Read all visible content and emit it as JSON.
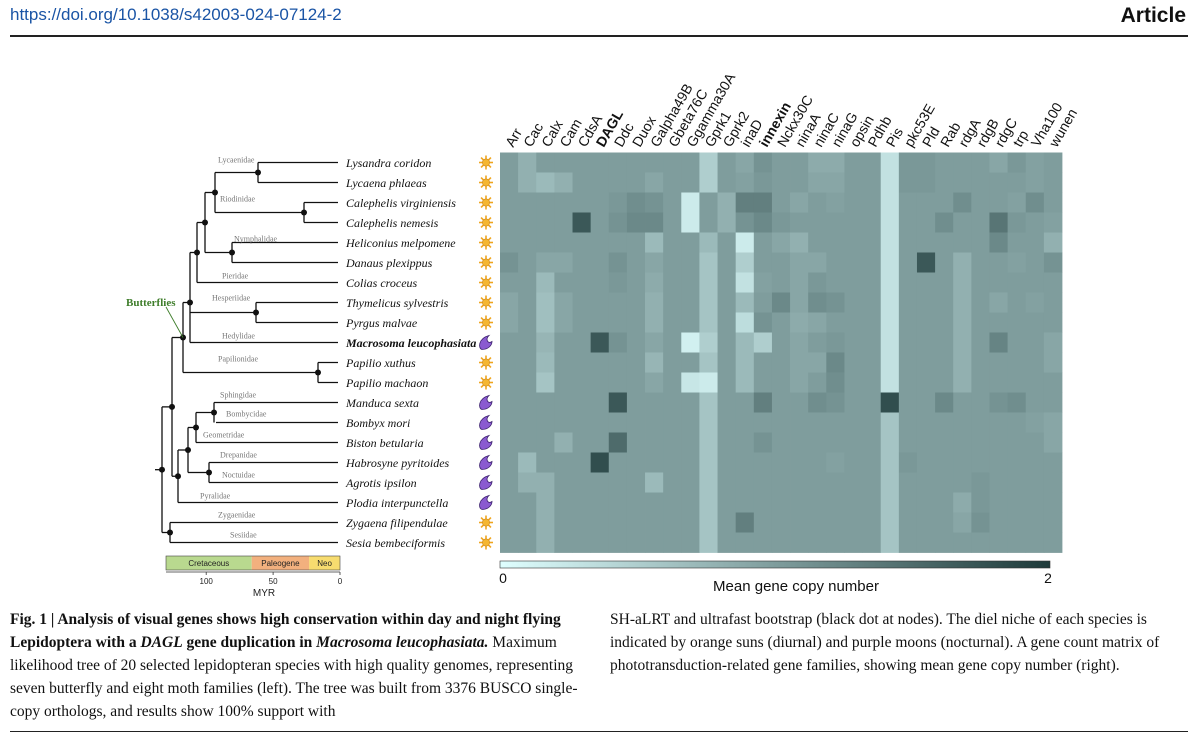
{
  "header": {
    "doi": "https://doi.org/10.1038/s42003-024-07124-2",
    "section": "Article"
  },
  "genes": [
    {
      "name": "Arr",
      "bold": false
    },
    {
      "name": "Cac",
      "bold": false
    },
    {
      "name": "Calx",
      "bold": false
    },
    {
      "name": "Cam",
      "bold": false
    },
    {
      "name": "CdsA",
      "bold": false
    },
    {
      "name": "DAGL",
      "bold": true
    },
    {
      "name": "Ddc",
      "bold": false
    },
    {
      "name": "Duox",
      "bold": false
    },
    {
      "name": "Galpha49B",
      "bold": false
    },
    {
      "name": "Gbeta76C",
      "bold": false
    },
    {
      "name": "Ggamma30A",
      "bold": false
    },
    {
      "name": "Gprk1",
      "bold": false
    },
    {
      "name": "Gprk2",
      "bold": false
    },
    {
      "name": "inaD",
      "bold": false
    },
    {
      "name": "innexin",
      "bold": true
    },
    {
      "name": "Nckx30C",
      "bold": false
    },
    {
      "name": "ninaA",
      "bold": false
    },
    {
      "name": "ninaC",
      "bold": false
    },
    {
      "name": "ninaG",
      "bold": false
    },
    {
      "name": "opsin",
      "bold": false
    },
    {
      "name": "Pdhb",
      "bold": false
    },
    {
      "name": "Pis",
      "bold": false
    },
    {
      "name": "pkc53E",
      "bold": false
    },
    {
      "name": "Pld",
      "bold": false
    },
    {
      "name": "Rab",
      "bold": false
    },
    {
      "name": "rdgA",
      "bold": false
    },
    {
      "name": "rdgB",
      "bold": false
    },
    {
      "name": "rdgC",
      "bold": false
    },
    {
      "name": "trp",
      "bold": false
    },
    {
      "name": "Vha100",
      "bold": false
    },
    {
      "name": "wunen",
      "bold": false
    }
  ],
  "species": [
    {
      "name": "Lysandra coridon",
      "niche": "diurnal",
      "bold": false
    },
    {
      "name": "Lycaena phlaeas",
      "niche": "diurnal",
      "bold": false
    },
    {
      "name": "Calephelis virginiensis",
      "niche": "diurnal",
      "bold": false
    },
    {
      "name": "Calephelis nemesis",
      "niche": "diurnal",
      "bold": false
    },
    {
      "name": "Heliconius melpomene",
      "niche": "diurnal",
      "bold": false
    },
    {
      "name": "Danaus plexippus",
      "niche": "diurnal",
      "bold": false
    },
    {
      "name": "Colias croceus",
      "niche": "diurnal",
      "bold": false
    },
    {
      "name": "Thymelicus sylvestris",
      "niche": "diurnal",
      "bold": false
    },
    {
      "name": "Pyrgus malvae",
      "niche": "diurnal",
      "bold": false
    },
    {
      "name": "Macrosoma leucophasiata",
      "niche": "nocturnal",
      "bold": true
    },
    {
      "name": "Papilio xuthus",
      "niche": "diurnal",
      "bold": false
    },
    {
      "name": "Papilio machaon",
      "niche": "diurnal",
      "bold": false
    },
    {
      "name": "Manduca sexta",
      "niche": "nocturnal",
      "bold": false
    },
    {
      "name": "Bombyx mori",
      "niche": "nocturnal",
      "bold": false
    },
    {
      "name": "Biston betularia",
      "niche": "nocturnal",
      "bold": false
    },
    {
      "name": "Habrosyne pyritoides",
      "niche": "nocturnal",
      "bold": false
    },
    {
      "name": "Agrotis ipsilon",
      "niche": "nocturnal",
      "bold": false
    },
    {
      "name": "Plodia interpunctella",
      "niche": "nocturnal",
      "bold": false
    },
    {
      "name": "Zygaena filipendulae",
      "niche": "diurnal",
      "bold": false
    },
    {
      "name": "Sesia bembeciformis",
      "niche": "diurnal",
      "bold": false
    }
  ],
  "families": [
    "Lycaenidae",
    "Riodinidae",
    "Nymphalidae",
    "Pieridae",
    "Hesperiidae",
    "Hedylidae",
    "Papilionidae",
    "Sphingidae",
    "Bombycidae",
    "Geometridae",
    "Drepanidae",
    "Noctuidae",
    "Pyralidae",
    "Zygaenidae",
    "Sesiidae"
  ],
  "clade_label": "Butterflies",
  "timescale": {
    "periods": [
      {
        "name": "Cretaceous",
        "color": "#b9d98f"
      },
      {
        "name": "Paleogene",
        "color": "#f2b07e"
      },
      {
        "name": "Neo",
        "color": "#f7dc6f"
      }
    ],
    "ticks": [
      "100",
      "50",
      "0"
    ],
    "unit": "MYR"
  },
  "colors": {
    "low": "#dfffff",
    "high": "#1e3a3a",
    "base": "#4f9797"
  },
  "chart_data": {
    "type": "heatmap",
    "colorbar": {
      "title": "Mean gene copy number",
      "min": 0,
      "max": 2,
      "tick_labels": [
        "0",
        "2"
      ]
    },
    "x": [
      "Arr",
      "Cac",
      "Calx",
      "Cam",
      "CdsA",
      "DAGL",
      "Ddc",
      "Duox",
      "Galpha49B",
      "Gbeta76C",
      "Ggamma30A",
      "Gprk1",
      "Gprk2",
      "inaD",
      "innexin",
      "Nckx30C",
      "ninaA",
      "ninaC",
      "ninaG",
      "opsin",
      "Pdhb",
      "Pis",
      "pkc53E",
      "Pld",
      "Rab",
      "rdgA",
      "rdgB",
      "rdgC",
      "trp",
      "Vha100",
      "wunen"
    ],
    "y": [
      "Lysandra coridon",
      "Lycaena phlaeas",
      "Calephelis virginiensis",
      "Calephelis nemesis",
      "Heliconius melpomene",
      "Danaus plexippus",
      "Colias croceus",
      "Thymelicus sylvestris",
      "Pyrgus malvae",
      "Macrosoma leucophasiata",
      "Papilio xuthus",
      "Papilio machaon",
      "Manduca sexta",
      "Bombyx mori",
      "Biston betularia",
      "Habrosyne pyritoides",
      "Agrotis ipsilon",
      "Plodia interpunctella",
      "Zygaena filipendulae",
      "Sesia bembeciformis"
    ],
    "values": [
      [
        1,
        0.8,
        1,
        1,
        1,
        1,
        1,
        1,
        1,
        1,
        1,
        0.5,
        1,
        0.9,
        1.1,
        1,
        1,
        0.85,
        0.85,
        1,
        1,
        0.3,
        1.05,
        1.05,
        1,
        1,
        1,
        0.9,
        1.05,
        0.95,
        1
      ],
      [
        1,
        0.8,
        0.7,
        0.8,
        1,
        1,
        1,
        1,
        0.9,
        1,
        1,
        0.5,
        1,
        0.95,
        1.05,
        1,
        1,
        0.9,
        0.9,
        1,
        1,
        0.3,
        1.05,
        1.05,
        1,
        1,
        1,
        1,
        1,
        0.95,
        1
      ],
      [
        1,
        1,
        1,
        1,
        1,
        1,
        1.05,
        1.15,
        1.1,
        1,
        0.2,
        1,
        0.8,
        1.3,
        1.3,
        1,
        0.9,
        1,
        0.95,
        1,
        1,
        0.3,
        1,
        1,
        1,
        1.15,
        1,
        1,
        0.95,
        1.15,
        1
      ],
      [
        1,
        1,
        1,
        1,
        1.7,
        1,
        1.1,
        1.2,
        1.2,
        1,
        0.2,
        1,
        0.8,
        1.1,
        1.2,
        1.05,
        1,
        1,
        1,
        1,
        1,
        0.3,
        1,
        1,
        1.15,
        1,
        1,
        1.4,
        1.05,
        1,
        0.95
      ],
      [
        1,
        1,
        1,
        1,
        1,
        1,
        1,
        1,
        0.7,
        1,
        1,
        0.7,
        1,
        0.2,
        1,
        0.9,
        0.8,
        1,
        1,
        1,
        1,
        0.3,
        1,
        1,
        1,
        1,
        1,
        1.2,
        1,
        1,
        0.8
      ],
      [
        1.1,
        1,
        0.9,
        0.9,
        1,
        1,
        1.1,
        1,
        0.9,
        1,
        1,
        0.6,
        1,
        0.5,
        1,
        1,
        0.9,
        0.9,
        1,
        1,
        1,
        0.3,
        1,
        1.7,
        1,
        0.8,
        1,
        1,
        0.95,
        1,
        1.1
      ],
      [
        1,
        1,
        0.7,
        1,
        1,
        1,
        1.05,
        1,
        0.85,
        1,
        1,
        0.6,
        1,
        0.3,
        0.95,
        1,
        0.9,
        1.05,
        1,
        1,
        1,
        0.3,
        1,
        1,
        1,
        0.8,
        1,
        1,
        1,
        1,
        1
      ],
      [
        0.9,
        1,
        0.65,
        0.9,
        1,
        1,
        1,
        1,
        0.8,
        1,
        1,
        0.6,
        1,
        0.7,
        1,
        1.2,
        0.9,
        1.15,
        1.1,
        1,
        1,
        0.3,
        1,
        1,
        1,
        0.8,
        1,
        0.9,
        1,
        0.95,
        1
      ],
      [
        0.9,
        1,
        0.65,
        0.9,
        1,
        1,
        1,
        1,
        0.8,
        1,
        1,
        0.6,
        1,
        0.35,
        1.1,
        1,
        0.85,
        0.9,
        1,
        1,
        1,
        0.3,
        1,
        1,
        1,
        0.8,
        1,
        1,
        1,
        1,
        1
      ],
      [
        1,
        1,
        0.75,
        1,
        1,
        1.7,
        1.1,
        1,
        0.9,
        1,
        0.15,
        0.5,
        1,
        0.7,
        0.5,
        1,
        0.9,
        1,
        1.05,
        1,
        1,
        0.3,
        1,
        1,
        1,
        0.8,
        1,
        1.25,
        1,
        1,
        0.9
      ],
      [
        1,
        1,
        0.7,
        1,
        1,
        1,
        1,
        1,
        0.75,
        1,
        1,
        0.6,
        1,
        0.7,
        1,
        1,
        0.9,
        0.9,
        1.2,
        1,
        1,
        0.3,
        1,
        1,
        1,
        0.8,
        1,
        1,
        1,
        1,
        0.9
      ],
      [
        1,
        1,
        0.6,
        1,
        1,
        1,
        1,
        1,
        0.9,
        1,
        0.25,
        0.2,
        1,
        0.7,
        1,
        1,
        0.9,
        1,
        1.15,
        1,
        1,
        0.3,
        1,
        1,
        1,
        0.8,
        1,
        1,
        1,
        1,
        1
      ],
      [
        1,
        1,
        1,
        1,
        1,
        1,
        1.7,
        1,
        1,
        1,
        1,
        0.6,
        1,
        1,
        1.3,
        1,
        1,
        1.15,
        1.1,
        1,
        1,
        1.8,
        1,
        1,
        1.2,
        1,
        1,
        1.1,
        1.15,
        1,
        1
      ],
      [
        1,
        1,
        1,
        1,
        1,
        1,
        1,
        1,
        1,
        1,
        1,
        0.6,
        1,
        1,
        1,
        1,
        1,
        1,
        1,
        1,
        1,
        0.6,
        1,
        1,
        1,
        1,
        1,
        1,
        1,
        0.95,
        0.9
      ],
      [
        1,
        1,
        1,
        0.8,
        1,
        1,
        1.5,
        1,
        1,
        1,
        1,
        0.6,
        1,
        1,
        1.1,
        1,
        1,
        1,
        1,
        1,
        1,
        0.6,
        1,
        1,
        1,
        1,
        1,
        1,
        1,
        1,
        0.9
      ],
      [
        1,
        0.7,
        1,
        1,
        1,
        1.8,
        1,
        1,
        1,
        1,
        1,
        0.6,
        1,
        1,
        1,
        1,
        1,
        1,
        0.95,
        1,
        1,
        0.6,
        1.05,
        1,
        1,
        1,
        1,
        1,
        1,
        1,
        1
      ],
      [
        1,
        0.8,
        0.8,
        1,
        1,
        1,
        1,
        1,
        0.7,
        1,
        1,
        0.6,
        1,
        1,
        1,
        1,
        1,
        1,
        1,
        1,
        1,
        0.6,
        1,
        1,
        1,
        1,
        1.05,
        1,
        1,
        1,
        1
      ],
      [
        1,
        1,
        0.8,
        1,
        1,
        1,
        1,
        1,
        1,
        1,
        1,
        0.6,
        1,
        1,
        1,
        1,
        1,
        1,
        1,
        1,
        1,
        0.6,
        1,
        1,
        1,
        0.85,
        1.05,
        1,
        1,
        1,
        1
      ],
      [
        1,
        1,
        0.8,
        1,
        1,
        1,
        1,
        1,
        1,
        1,
        1,
        0.6,
        1,
        1.3,
        1,
        1,
        1,
        1,
        1,
        1,
        1,
        0.6,
        1,
        1,
        1,
        0.9,
        1.1,
        1,
        1,
        1,
        1
      ],
      [
        1,
        1,
        0.8,
        1,
        1,
        1,
        1,
        1,
        1,
        1,
        1,
        0.6,
        1,
        1,
        1,
        1,
        1,
        1,
        1,
        1,
        1,
        0.6,
        1,
        1,
        1,
        1,
        1,
        1,
        1,
        1,
        1
      ]
    ]
  },
  "caption": {
    "fig_label": "Fig. 1 | ",
    "bold_1": "Analysis of visual genes shows high conservation within day and night flying Lepidoptera with a ",
    "bold_italic_1": "DAGL",
    "bold_2": " gene duplication in ",
    "bold_italic_2": "Macrosoma leucophasiata.",
    "body_left": " Maximum likelihood tree of 20 selected lepidopteran species with high quality genomes, representing seven butterfly and eight moth families (left). The tree was built from 3376 BUSCO single-copy orthologs, and results show 100% support with",
    "body_right": "SH-aLRT and ultrafast bootstrap (black dot at nodes). The diel niche of each species is indicated by orange suns (diurnal) and purple moons (nocturnal). A gene count matrix of phototransduction-related gene families, showing mean gene copy number (right)."
  }
}
